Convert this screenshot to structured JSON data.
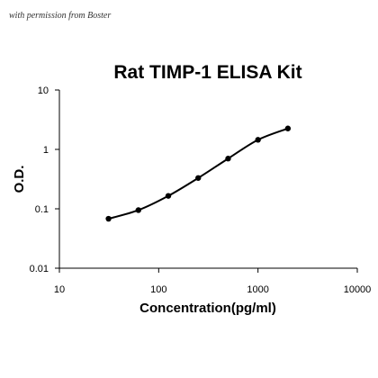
{
  "watermark": "with permission from Boster",
  "chart_data": {
    "type": "line",
    "title": "Rat TIMP-1 ELISA Kit",
    "xlabel": "Concentration(pg/ml)",
    "ylabel": "O.D.",
    "x_scale": "log",
    "y_scale": "log",
    "xlim": [
      10,
      10000
    ],
    "ylim": [
      0.01,
      10
    ],
    "x_ticks": [
      "10",
      "100",
      "1000",
      "10000"
    ],
    "y_ticks": [
      "10",
      "1",
      "0.1",
      "0.01"
    ],
    "grid": false,
    "legend": "none",
    "series": [
      {
        "x": [
          31.25,
          62.5,
          125,
          250,
          500,
          1000,
          2000
        ],
        "y": [
          0.068,
          0.095,
          0.165,
          0.33,
          0.7,
          1.45,
          2.25
        ]
      }
    ],
    "line_color": "#000000"
  }
}
